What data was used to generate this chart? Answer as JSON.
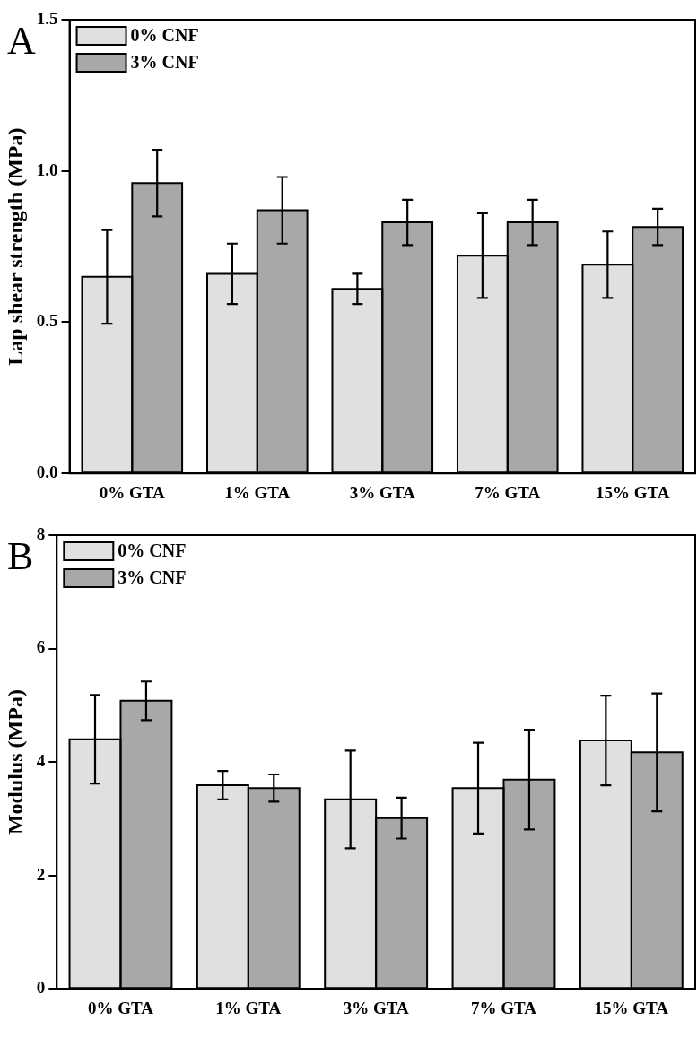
{
  "chart_data": [
    {
      "type": "bar",
      "annotations": [
        "A"
      ],
      "ylabel": "Lap shear strength (MPa)",
      "categories": [
        "0% GTA",
        "1% GTA",
        "3% GTA",
        "7% GTA",
        "15% GTA"
      ],
      "series": [
        {
          "name": "0% CNF",
          "color": "#e0e0e0",
          "values": [
            0.65,
            0.66,
            0.61,
            0.72,
            0.69
          ],
          "errors": [
            0.155,
            0.1,
            0.05,
            0.14,
            0.11
          ]
        },
        {
          "name": "3% CNF",
          "color": "#a8a8a8",
          "values": [
            0.96,
            0.87,
            0.83,
            0.83,
            0.815
          ],
          "errors": [
            0.11,
            0.11,
            0.075,
            0.075,
            0.06
          ]
        }
      ],
      "ylim": [
        0,
        1.5
      ],
      "yticks": [
        {
          "value": 0,
          "label": "0.0"
        },
        {
          "value": 0.5,
          "label": "0.5"
        },
        {
          "value": 1,
          "label": "1.0"
        },
        {
          "value": 1.5,
          "label": "1.5"
        }
      ],
      "grid": false,
      "legend": "top left"
    },
    {
      "type": "bar",
      "annotations": [
        "B"
      ],
      "ylabel": "Modulus (MPa)",
      "categories": [
        "0% GTA",
        "1% GTA",
        "3% GTA",
        "7% GTA",
        "15% GTA"
      ],
      "series": [
        {
          "name": "0% CNF",
          "color": "#e0e0e0",
          "values": [
            4.4,
            3.59,
            3.34,
            3.54,
            4.38
          ],
          "errors": [
            0.78,
            0.25,
            0.86,
            0.8,
            0.79
          ]
        },
        {
          "name": "3% CNF",
          "color": "#a8a8a8",
          "values": [
            5.08,
            3.54,
            3.01,
            3.69,
            4.17
          ],
          "errors": [
            0.34,
            0.24,
            0.36,
            0.88,
            1.04
          ]
        }
      ],
      "ylim": [
        0,
        8
      ],
      "yticks": [
        0,
        2,
        4,
        6,
        8
      ],
      "grid": false,
      "legend": "top left"
    }
  ]
}
